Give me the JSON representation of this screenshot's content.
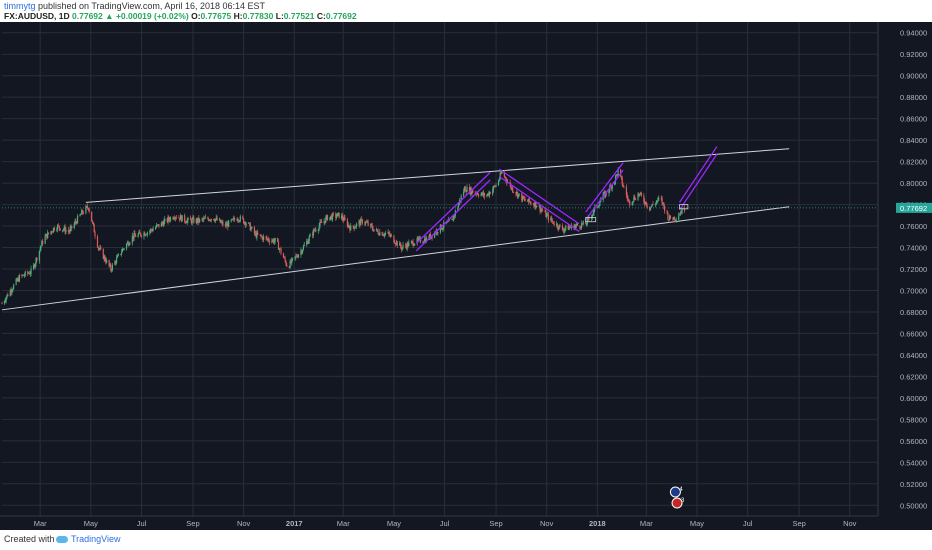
{
  "header": {
    "user": "timmytg",
    "published": "published on TradingView.com, April 16, 2018 06:14 EST",
    "symbol": "FX:AUDUSD, 1D",
    "last": "0.77692",
    "change": "+0.00019 (+0.02%)",
    "o_label": "O:",
    "o_val": "0.77675",
    "h_label": "H:",
    "h_val": "0.77830",
    "l_label": "L:",
    "l_val": "0.77521",
    "c_label": "C:",
    "c_val": "0.77692"
  },
  "footer": {
    "created": "Created with",
    "brand": "TradingView"
  },
  "colors": {
    "background": "#131722",
    "grid": "#2a2e39",
    "up": "#4caf7d",
    "down": "#e05a5a",
    "trendline": "#d1d4dc",
    "channel": "#9c27ff",
    "price_line": "#26a69a",
    "price_label_bg": "#26a69a"
  },
  "chart_data": {
    "type": "candlestick",
    "symbol": "FX:AUDUSD",
    "timeframe": "1D",
    "ylim": [
      0.49,
      0.95
    ],
    "yticks": [
      0.94,
      0.92,
      0.9,
      0.88,
      0.86,
      0.84,
      0.82,
      0.8,
      0.78,
      0.76,
      0.74,
      0.72,
      0.7,
      0.68,
      0.66,
      0.64,
      0.62,
      0.6,
      0.58,
      0.56,
      0.54,
      0.52,
      0.5
    ],
    "ytick_labels": [
      "0.94000",
      "0.92000",
      "0.90000",
      "0.88000",
      "0.86000",
      "0.84000",
      "0.82000",
      "0.80000",
      "0.78000",
      "0.76000",
      "0.74000",
      "0.72000",
      "0.70000",
      "0.68000",
      "0.66000",
      "0.64000",
      "0.62000",
      "0.60000",
      "0.58000",
      "0.56000",
      "0.54000",
      "0.52000",
      "0.50000"
    ],
    "xlim": [
      "2016-01-15",
      "2018-12-05"
    ],
    "xticks": [
      {
        "date": "2016-03-01",
        "label": "Mar"
      },
      {
        "date": "2016-05-01",
        "label": "May"
      },
      {
        "date": "2016-07-01",
        "label": "Jul"
      },
      {
        "date": "2016-09-01",
        "label": "Sep"
      },
      {
        "date": "2016-11-01",
        "label": "Nov"
      },
      {
        "date": "2017-01-01",
        "label": "2017"
      },
      {
        "date": "2017-03-01",
        "label": "Mar"
      },
      {
        "date": "2017-05-01",
        "label": "May"
      },
      {
        "date": "2017-07-01",
        "label": "Jul"
      },
      {
        "date": "2017-09-01",
        "label": "Sep"
      },
      {
        "date": "2017-11-01",
        "label": "Nov"
      },
      {
        "date": "2018-01-01",
        "label": "2018"
      },
      {
        "date": "2018-03-01",
        "label": "Mar"
      },
      {
        "date": "2018-05-01",
        "label": "May"
      },
      {
        "date": "2018-07-01",
        "label": "Jul"
      },
      {
        "date": "2018-09-01",
        "label": "Sep"
      },
      {
        "date": "2018-11-01",
        "label": "Nov"
      }
    ],
    "price_path": [
      [
        "2016-01-15",
        0.688
      ],
      [
        "2016-01-25",
        0.7
      ],
      [
        "2016-02-05",
        0.712
      ],
      [
        "2016-02-20",
        0.718
      ],
      [
        "2016-03-05",
        0.748
      ],
      [
        "2016-03-20",
        0.76
      ],
      [
        "2016-04-05",
        0.755
      ],
      [
        "2016-04-20",
        0.772
      ],
      [
        "2016-04-28",
        0.778
      ],
      [
        "2016-05-10",
        0.74
      ],
      [
        "2016-05-25",
        0.72
      ],
      [
        "2016-06-08",
        0.738
      ],
      [
        "2016-06-20",
        0.75
      ],
      [
        "2016-07-10",
        0.755
      ],
      [
        "2016-07-25",
        0.762
      ],
      [
        "2016-08-10",
        0.77
      ],
      [
        "2016-08-25",
        0.765
      ],
      [
        "2016-09-10",
        0.765
      ],
      [
        "2016-09-25",
        0.768
      ],
      [
        "2016-10-10",
        0.76
      ],
      [
        "2016-10-25",
        0.768
      ],
      [
        "2016-11-05",
        0.763
      ],
      [
        "2016-11-15",
        0.752
      ],
      [
        "2016-11-28",
        0.748
      ],
      [
        "2016-12-10",
        0.746
      ],
      [
        "2016-12-24",
        0.722
      ],
      [
        "2017-01-10",
        0.738
      ],
      [
        "2017-01-25",
        0.756
      ],
      [
        "2017-02-10",
        0.768
      ],
      [
        "2017-02-25",
        0.77
      ],
      [
        "2017-03-10",
        0.758
      ],
      [
        "2017-03-25",
        0.765
      ],
      [
        "2017-04-10",
        0.755
      ],
      [
        "2017-04-25",
        0.752
      ],
      [
        "2017-05-10",
        0.74
      ],
      [
        "2017-05-25",
        0.745
      ],
      [
        "2017-06-10",
        0.748
      ],
      [
        "2017-06-25",
        0.758
      ],
      [
        "2017-07-10",
        0.765
      ],
      [
        "2017-07-25",
        0.795
      ],
      [
        "2017-08-05",
        0.792
      ],
      [
        "2017-08-20",
        0.788
      ],
      [
        "2017-09-01",
        0.798
      ],
      [
        "2017-09-08",
        0.81
      ],
      [
        "2017-09-20",
        0.795
      ],
      [
        "2017-10-05",
        0.784
      ],
      [
        "2017-10-20",
        0.78
      ],
      [
        "2017-11-05",
        0.766
      ],
      [
        "2017-11-20",
        0.757
      ],
      [
        "2017-12-05",
        0.76
      ],
      [
        "2017-12-18",
        0.762
      ],
      [
        "2018-01-05",
        0.784
      ],
      [
        "2018-01-20",
        0.8
      ],
      [
        "2018-01-26",
        0.811
      ],
      [
        "2018-02-08",
        0.782
      ],
      [
        "2018-02-20",
        0.79
      ],
      [
        "2018-03-05",
        0.777
      ],
      [
        "2018-03-18",
        0.786
      ],
      [
        "2018-03-28",
        0.767
      ],
      [
        "2018-04-05",
        0.768
      ],
      [
        "2018-04-16",
        0.77692
      ]
    ],
    "last_price": 0.77692,
    "last_price_label": "0.77692",
    "trendlines": [
      {
        "name": "upper",
        "from": [
          "2016-04-25",
          0.782
        ],
        "to": [
          "2018-08-20",
          0.832
        ]
      },
      {
        "name": "lower",
        "from": [
          "2016-01-15",
          0.682
        ],
        "to": [
          "2018-08-20",
          0.778
        ]
      }
    ],
    "channels": [
      {
        "from": [
          "2017-05-28",
          0.737
        ],
        "to": [
          "2017-08-25",
          0.803
        ],
        "offset": 0.007
      },
      {
        "from": [
          "2017-09-05",
          0.806
        ],
        "to": [
          "2017-12-10",
          0.755
        ],
        "offset": 0.007
      },
      {
        "from": [
          "2017-12-18",
          0.766
        ],
        "to": [
          "2018-02-01",
          0.812
        ],
        "offset": 0.007
      },
      {
        "from": [
          "2018-04-10",
          0.775
        ],
        "to": [
          "2018-05-25",
          0.827
        ],
        "offset": 0.007
      }
    ],
    "boxes": [
      {
        "from": [
          "2017-12-18",
          0.768
        ],
        "to": [
          "2017-12-30",
          0.764
        ]
      },
      {
        "from": [
          "2018-04-10",
          0.78
        ],
        "to": [
          "2018-04-20",
          0.776
        ]
      }
    ],
    "event_badges": [
      {
        "date": "2018-04-05",
        "label": "4"
      },
      {
        "date": "2018-04-07",
        "label": "3"
      }
    ]
  }
}
